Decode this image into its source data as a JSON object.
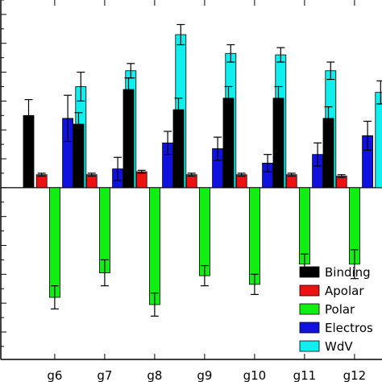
{
  "chart_data": {
    "type": "bar",
    "title": "",
    "xlabel": "",
    "ylabel": "",
    "categories": [
      "g6",
      "g7",
      "g8",
      "g9",
      "g10",
      "g11",
      "g12"
    ],
    "ylim": [
      -59.5,
      65
    ],
    "grid": false,
    "legend_placement": "bottom-right",
    "series": [
      {
        "name": "Binding",
        "color": "#000000",
        "values": [
          25,
          22,
          34,
          27,
          31,
          31,
          24
        ],
        "errors": [
          5.5,
          4,
          4,
          4,
          4,
          4,
          4
        ]
      },
      {
        "name": "Apolar",
        "color": "#ee1111",
        "values": [
          4.5,
          4.5,
          5.5,
          4.5,
          4.5,
          4.5,
          4
        ],
        "errors": [
          0.5,
          0.5,
          0.5,
          0.5,
          0.5,
          0.5,
          0.5
        ]
      },
      {
        "name": "Polar",
        "color": "#11ee11",
        "values": [
          -38,
          -29.5,
          -40.5,
          -30.5,
          -33.5,
          -26.5,
          -26.5
        ],
        "errors": [
          4,
          4.5,
          4,
          3.5,
          3.5,
          3.5,
          5
        ]
      },
      {
        "name": "Electros",
        "color": "#1111dd",
        "values": [
          24,
          6.5,
          15.5,
          13.5,
          8.5,
          11.5,
          18
        ],
        "errors": [
          8,
          4,
          4,
          4,
          3,
          4,
          5
        ]
      },
      {
        "name": "WdV",
        "color": "#11eeee",
        "values": [
          35,
          40.5,
          53,
          46.5,
          46,
          40.5,
          33
        ],
        "errors": [
          5,
          2.5,
          3.5,
          3,
          2.5,
          3,
          4
        ]
      }
    ]
  }
}
